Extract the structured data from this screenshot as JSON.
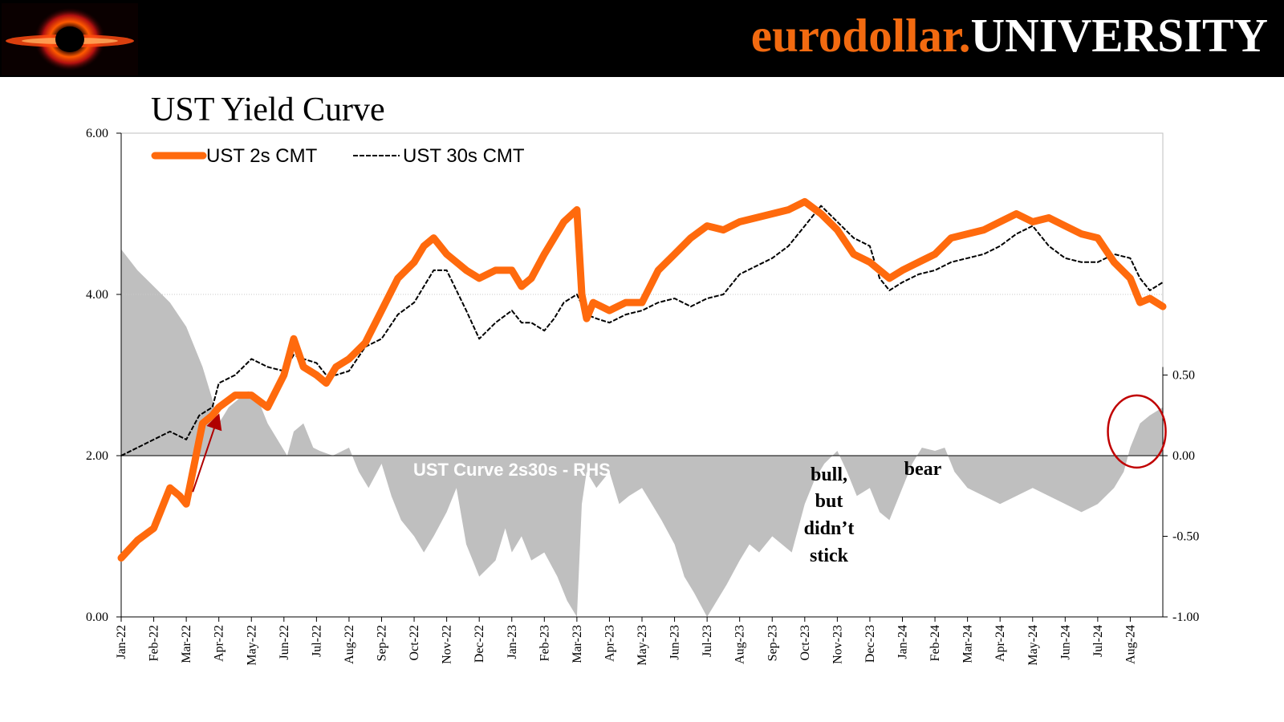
{
  "header": {
    "brand_part1": "eurodollar.",
    "brand_part2": "UNIVERSITY",
    "logo_icon": "black-hole-logo-icon",
    "accent_color": "#f26a10"
  },
  "chart_data": {
    "type": "line",
    "title": "UST Yield Curve",
    "x_tick_labels": [
      "Jan-22",
      "Feb-22",
      "Mar-22",
      "Apr-22",
      "May-22",
      "Jun-22",
      "Jul-22",
      "Aug-22",
      "Sep-22",
      "Oct-22",
      "Nov-22",
      "Dec-22",
      "Jan-23",
      "Feb-23",
      "Mar-23",
      "Apr-23",
      "May-23",
      "Jun-23",
      "Jul-23",
      "Aug-23",
      "Sep-23",
      "Oct-23",
      "Nov-23",
      "Dec-23",
      "Jan-24",
      "Feb-24",
      "Mar-24",
      "Apr-24",
      "May-24",
      "Jun-24",
      "Jul-24",
      "Aug-24"
    ],
    "x_range": [
      0,
      32
    ],
    "y_left": {
      "range": [
        0,
        6
      ],
      "tick_labels": [
        "0.00",
        "2.00",
        "4.00",
        "6.00"
      ],
      "tick_values": [
        0,
        2,
        4,
        6
      ]
    },
    "y_right": {
      "range": [
        -1,
        2
      ],
      "tick_labels": [
        "-1.00",
        "-0.50",
        "0.00",
        "0.50"
      ],
      "tick_values": [
        -1,
        -0.5,
        0,
        0.5
      ]
    },
    "series": [
      {
        "name": "UST 2s CMT",
        "axis": "left",
        "style": "thick-solid",
        "color": "#ff6a0d",
        "x": [
          0,
          0.5,
          1,
          1.2,
          1.5,
          1.8,
          2,
          2.15,
          2.4,
          2.5,
          2.8,
          3,
          3.5,
          4,
          4.5,
          5,
          5.3,
          5.6,
          6,
          6.3,
          6.6,
          7,
          7.5,
          8,
          8.5,
          9,
          9.3,
          9.6,
          10,
          10.3,
          10.6,
          11,
          11.5,
          12,
          12.3,
          12.6,
          13,
          13.3,
          13.6,
          14,
          14.15,
          14.3,
          14.5,
          15,
          15.5,
          16,
          16.5,
          17,
          17.5,
          18,
          18.5,
          19,
          19.5,
          20,
          20.5,
          21,
          21.5,
          22,
          22.5,
          23,
          23.3,
          23.6,
          24,
          24.5,
          25,
          25.5,
          26,
          26.5,
          27,
          27.5,
          28,
          28.5,
          29,
          29.5,
          30,
          30.5,
          31,
          31.3,
          31.6,
          32
        ],
        "y": [
          0.73,
          0.95,
          1.1,
          1.3,
          1.6,
          1.5,
          1.4,
          1.7,
          2.2,
          2.4,
          2.5,
          2.6,
          2.75,
          2.75,
          2.6,
          3.0,
          3.45,
          3.1,
          3.0,
          2.9,
          3.1,
          3.2,
          3.4,
          3.8,
          4.2,
          4.4,
          4.6,
          4.7,
          4.5,
          4.4,
          4.3,
          4.2,
          4.3,
          4.3,
          4.1,
          4.2,
          4.5,
          4.7,
          4.9,
          5.05,
          4.0,
          3.7,
          3.9,
          3.8,
          3.9,
          3.9,
          4.3,
          4.5,
          4.7,
          4.85,
          4.8,
          4.9,
          4.95,
          5.0,
          5.05,
          5.15,
          5.0,
          4.8,
          4.5,
          4.4,
          4.3,
          4.2,
          4.3,
          4.4,
          4.5,
          4.7,
          4.75,
          4.8,
          4.9,
          5.0,
          4.9,
          4.95,
          4.85,
          4.75,
          4.7,
          4.4,
          4.2,
          3.9,
          3.95,
          3.85
        ]
      },
      {
        "name": "UST 30s CMT",
        "axis": "left",
        "style": "dashed",
        "color": "#000000",
        "x": [
          0,
          0.5,
          1,
          1.5,
          2,
          2.4,
          2.8,
          3,
          3.5,
          4,
          4.5,
          5,
          5.3,
          5.6,
          6,
          6.3,
          6.6,
          7,
          7.5,
          8,
          8.5,
          9,
          9.3,
          9.6,
          10,
          10.3,
          10.6,
          11,
          11.5,
          12,
          12.3,
          12.6,
          13,
          13.3,
          13.6,
          14,
          14.3,
          14.6,
          15,
          15.5,
          16,
          16.5,
          17,
          17.5,
          18,
          18.5,
          19,
          19.5,
          20,
          20.5,
          21,
          21.5,
          22,
          22.5,
          23,
          23.3,
          23.6,
          24,
          24.5,
          25,
          25.5,
          26,
          26.5,
          27,
          27.5,
          28,
          28.5,
          29,
          29.5,
          30,
          30.5,
          31,
          31.3,
          31.6,
          32
        ],
        "y": [
          2.0,
          2.1,
          2.2,
          2.3,
          2.2,
          2.5,
          2.6,
          2.9,
          3.0,
          3.2,
          3.1,
          3.05,
          3.25,
          3.2,
          3.15,
          3.0,
          3.0,
          3.05,
          3.35,
          3.45,
          3.75,
          3.9,
          4.1,
          4.3,
          4.3,
          4.05,
          3.8,
          3.45,
          3.65,
          3.8,
          3.65,
          3.65,
          3.55,
          3.7,
          3.9,
          4.0,
          3.75,
          3.7,
          3.65,
          3.75,
          3.8,
          3.9,
          3.95,
          3.85,
          3.95,
          4.0,
          4.25,
          4.35,
          4.45,
          4.6,
          4.85,
          5.1,
          4.9,
          4.7,
          4.6,
          4.2,
          4.05,
          4.15,
          4.25,
          4.3,
          4.4,
          4.45,
          4.5,
          4.6,
          4.75,
          4.85,
          4.6,
          4.45,
          4.4,
          4.4,
          4.5,
          4.45,
          4.2,
          4.05,
          4.15
        ]
      },
      {
        "name": "UST  Curve 2s30s - RHS",
        "axis": "right",
        "style": "area",
        "color": "#bfbfbf",
        "x": [
          0,
          0.5,
          1,
          1.5,
          2,
          2.5,
          2.8,
          3,
          3.3,
          3.6,
          3.9,
          4.2,
          4.5,
          4.8,
          5.1,
          5.3,
          5.6,
          5.9,
          6.1,
          6.5,
          7,
          7.3,
          7.6,
          8,
          8.3,
          8.6,
          9,
          9.3,
          9.6,
          10,
          10.3,
          10.6,
          11,
          11.5,
          11.8,
          12,
          12.3,
          12.6,
          13,
          13.4,
          13.7,
          14,
          14.15,
          14.3,
          14.6,
          15,
          15.3,
          15.6,
          16,
          16.3,
          16.6,
          17,
          17.3,
          17.6,
          18,
          18.3,
          18.6,
          19,
          19.3,
          19.6,
          20,
          20.3,
          20.6,
          21,
          21.3,
          21.6,
          22,
          22.3,
          22.6,
          23,
          23.3,
          23.6,
          24,
          24.3,
          24.6,
          25,
          25.3,
          25.6,
          26,
          26.5,
          27,
          27.5,
          28,
          28.5,
          29,
          29.5,
          30,
          30.5,
          30.8,
          31,
          31.3,
          31.6,
          32
        ],
        "y": [
          1.28,
          1.15,
          1.05,
          0.95,
          0.8,
          0.55,
          0.35,
          0.2,
          0.3,
          0.35,
          0.4,
          0.35,
          0.2,
          0.1,
          0.0,
          0.15,
          0.2,
          0.05,
          0.03,
          0.0,
          0.05,
          -0.1,
          -0.2,
          -0.05,
          -0.25,
          -0.4,
          -0.5,
          -0.6,
          -0.5,
          -0.35,
          -0.2,
          -0.55,
          -0.75,
          -0.65,
          -0.45,
          -0.6,
          -0.5,
          -0.65,
          -0.6,
          -0.75,
          -0.9,
          -1.0,
          -0.3,
          -0.1,
          -0.2,
          -0.1,
          -0.3,
          -0.25,
          -0.2,
          -0.3,
          -0.4,
          -0.55,
          -0.75,
          -0.85,
          -1.0,
          -0.9,
          -0.8,
          -0.65,
          -0.55,
          -0.6,
          -0.5,
          -0.55,
          -0.6,
          -0.3,
          -0.15,
          -0.05,
          0.03,
          -0.1,
          -0.25,
          -0.2,
          -0.35,
          -0.4,
          -0.2,
          -0.05,
          0.05,
          0.03,
          0.05,
          -0.1,
          -0.2,
          -0.25,
          -0.3,
          -0.25,
          -0.2,
          -0.25,
          -0.3,
          -0.35,
          -0.3,
          -0.2,
          -0.1,
          0.05,
          0.2,
          0.25,
          0.3
        ]
      }
    ],
    "annotations": [
      "bull,",
      "but",
      "didn’t",
      "stick",
      "bear"
    ]
  }
}
